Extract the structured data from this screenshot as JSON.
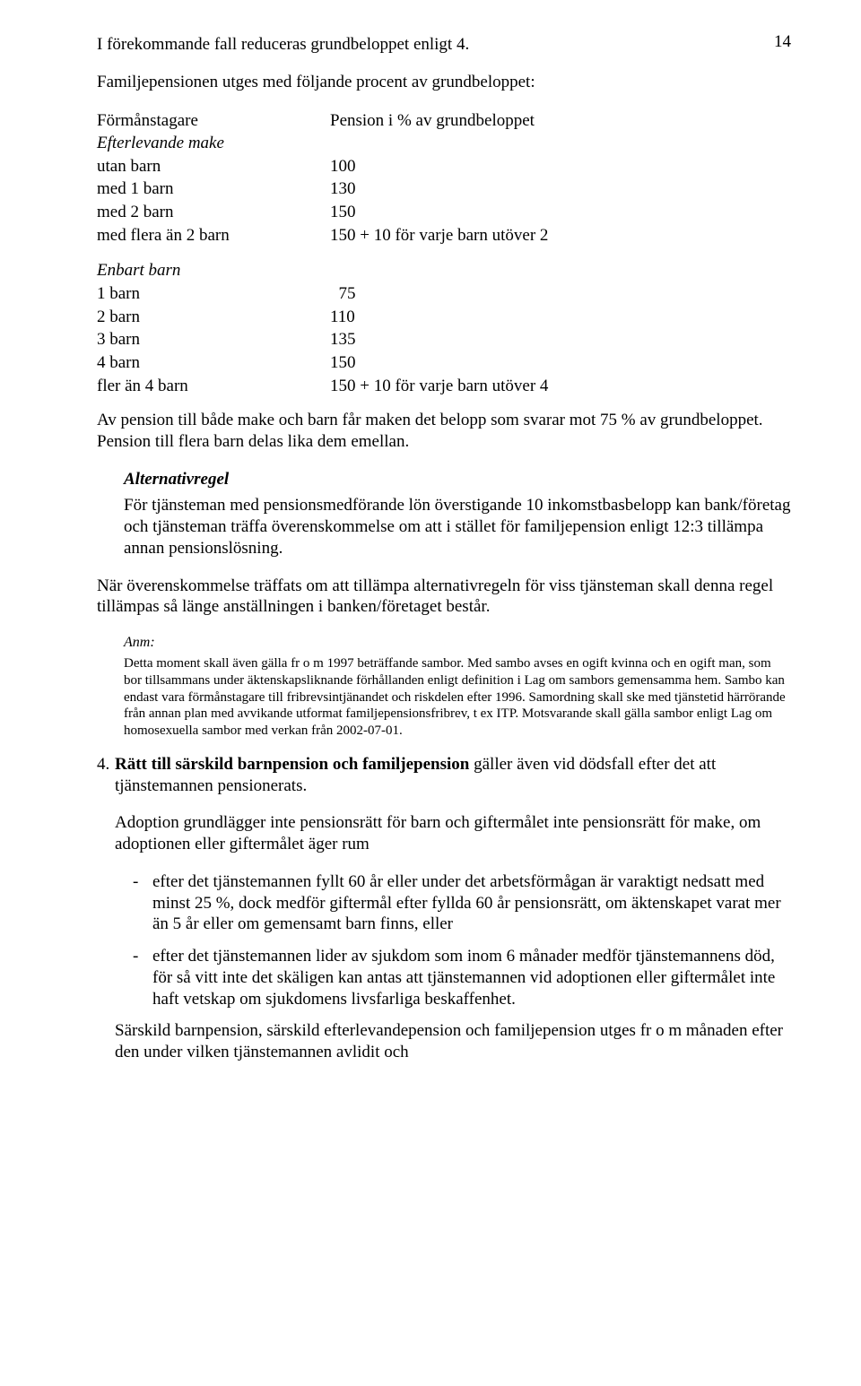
{
  "pageNumber": "14",
  "intro": "I förekommande fall reduceras grundbeloppet enligt 4.",
  "intro2": "Familjepensionen utges med följande procent av grundbeloppet:",
  "table1": {
    "header": {
      "left": "Förmånstagare",
      "right": "Pension i % av grundbeloppet"
    },
    "subhead": "Efterlevande make",
    "rows": [
      {
        "l": "utan barn",
        "r": "100"
      },
      {
        "l": "med 1 barn",
        "r": "130"
      },
      {
        "l": "med 2 barn",
        "r": "150"
      },
      {
        "l": "med flera än 2 barn",
        "r": "150 + 10 för varje barn utöver 2"
      }
    ]
  },
  "table2": {
    "subhead": "Enbart barn",
    "rows": [
      {
        "l": "1 barn",
        "r": "  75"
      },
      {
        "l": "2 barn",
        "r": "110"
      },
      {
        "l": "3 barn",
        "r": "135"
      },
      {
        "l": "4 barn",
        "r": "150"
      },
      {
        "l": "fler än 4 barn",
        "r": "150 + 10 för varje barn utöver 4"
      }
    ]
  },
  "para1": "Av pension till både make och barn får maken det belopp som svarar mot 75 % av grundbeloppet. Pension till flera barn delas lika dem emellan.",
  "altHeading": "Alternativregel",
  "altBody": "För tjänsteman med pensionsmedförande lön överstigande 10 inkomstbasbelopp kan bank/företag och tjänsteman träffa överenskommelse om att i stället för familjepension enligt 12:3 tillämpa annan pensionslösning.",
  "para2": "När överenskommelse träffats om att tillämpa alternativregeln för viss tjänsteman skall denna regel tillämpas så länge anställningen i banken/företaget består.",
  "anmLabel": "Anm:",
  "anmBody": "Detta moment skall även gälla fr o m 1997 beträffande sambor. Med sambo avses en ogift kvinna och en ogift man, som bor tillsammans under äktenskapsliknande förhållanden enligt definition i Lag om sambors gemensamma hem. Sambo kan endast vara förmånstagare till fribrevsintjänandet och riskdelen efter 1996. Samordning skall ske med tjänstetid härrörande från annan plan med avvikande utformat familjepensionsfribrev, t ex ITP. Motsvarande skall gälla sambor enligt Lag om homosexuella sambor med verkan från 2002-07-01.",
  "section4": {
    "num": "4.",
    "lead": "Rätt till särskild barnpension och familjepension",
    "rest": " gäller även vid dödsfall efter det att tjänstemannen pensionerats."
  },
  "para3": "Adoption grundlägger inte pensionsrätt för barn och giftermålet inte pensionsrätt för make, om adoptionen eller giftermålet äger rum",
  "bullets": [
    "efter det tjänstemannen fyllt 60 år eller under det arbetsförmågan är varaktigt nedsatt med minst 25 %, dock medför giftermål efter fyllda 60 år pensionsrätt, om äktenskapet varat mer än 5 år eller om gemensamt barn finns, eller",
    "efter det tjänstemannen lider av sjukdom som inom 6 månader medför tjänstemannens död, för så vitt inte det skäligen kan antas att tjänstemannen vid adoptionen eller giftermålet inte haft vetskap om sjukdomens livsfarliga beskaffenhet."
  ],
  "para4": "Särskild barnpension, särskild efterlevandepension och familjepension utges fr o m månaden efter den under vilken tjänstemannen avlidit och"
}
